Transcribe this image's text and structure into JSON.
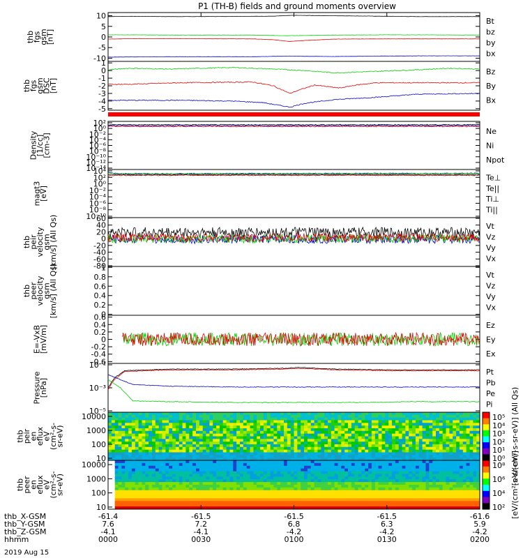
{
  "title": "P1 (TH-B) fields and ground moments overview",
  "date_label": "2019 Aug 15",
  "colors": {
    "black": "#000000",
    "red": "#e00000",
    "green": "#00d000",
    "blue": "#0000c8"
  },
  "chart_data": [
    {
      "id": "fgs_gsm",
      "type": "line",
      "ylabel": [
        "thb",
        "fgs",
        "gsm",
        "[nT]"
      ],
      "yticks": [
        10,
        5,
        0,
        -5,
        -10
      ],
      "ylim": [
        -11.5,
        11.5
      ],
      "legend": [
        {
          "name": "Bt",
          "color": "#000000"
        },
        {
          "name": "bz",
          "color": "#e00000"
        },
        {
          "name": "by",
          "color": "#00d000"
        },
        {
          "name": "bx",
          "color": "#0000c8"
        }
      ],
      "series": [
        {
          "name": "Bt",
          "color": "#000000",
          "x": [
            0,
            5,
            15,
            35,
            65,
            80,
            90,
            110,
            130,
            150,
            180
          ],
          "y": [
            9.6,
            9.7,
            9.7,
            9.6,
            9.7,
            9.8,
            10.2,
            10.0,
            9.8,
            9.6,
            9.6
          ]
        },
        {
          "name": "bz",
          "color": "#e00000",
          "x": [
            0,
            10,
            35,
            70,
            80,
            88,
            92,
            110,
            130,
            150,
            180
          ],
          "y": [
            -1.0,
            -0.8,
            -0.8,
            -0.9,
            -1.3,
            -2.1,
            -1.8,
            -1.0,
            -0.9,
            -0.9,
            -0.9
          ]
        },
        {
          "name": "by",
          "color": "#00d000",
          "x": [
            0,
            10,
            35,
            70,
            85,
            95,
            110,
            130,
            150,
            180
          ],
          "y": [
            1.0,
            1.0,
            0.9,
            0.9,
            0.6,
            0.7,
            0.9,
            1.0,
            1.0,
            0.9
          ]
        },
        {
          "name": "bx",
          "color": "#0000c8",
          "x": [
            0,
            10,
            35,
            70,
            88,
            95,
            110,
            130,
            150,
            180
          ],
          "y": [
            -9.5,
            -9.4,
            -9.3,
            -9.3,
            -9.0,
            -9.1,
            -9.2,
            -9.0,
            -8.9,
            -8.9
          ]
        }
      ]
    },
    {
      "id": "fgs_dsl",
      "type": "line",
      "ylabel": [
        "thb",
        "fgs",
        "gsm",
        "DSC",
        "[nT]"
      ],
      "yticks": [
        1,
        0,
        -1,
        -2,
        -3,
        -4,
        -5
      ],
      "ylim": [
        -5.2,
        1.2
      ],
      "legend": [
        {
          "name": "Bz",
          "color": "#e00000"
        },
        {
          "name": "By",
          "color": "#00d000"
        },
        {
          "name": "Bx",
          "color": "#0000c8"
        }
      ],
      "series": [
        {
          "name": "By",
          "color": "#00d000",
          "x": [
            0,
            10,
            30,
            60,
            80,
            95,
            110,
            130,
            150,
            165,
            180
          ],
          "y": [
            0.1,
            0.3,
            0.2,
            0.4,
            0.2,
            0.0,
            -0.3,
            -0.1,
            0.1,
            0.3,
            0.2
          ]
        },
        {
          "name": "Bz",
          "color": "#e00000",
          "x": [
            0,
            10,
            35,
            70,
            80,
            88,
            92,
            100,
            112,
            120,
            130,
            150,
            180
          ],
          "y": [
            -1.8,
            -1.8,
            -1.6,
            -1.5,
            -2.0,
            -3.0,
            -2.6,
            -1.9,
            -2.3,
            -1.9,
            -1.6,
            -1.6,
            -1.6
          ]
        },
        {
          "name": "Bx",
          "color": "#0000c8",
          "x": [
            0,
            10,
            35,
            60,
            75,
            88,
            95,
            110,
            130,
            150,
            180
          ],
          "y": [
            -3.9,
            -3.9,
            -3.9,
            -4.0,
            -4.2,
            -4.8,
            -4.3,
            -3.8,
            -3.5,
            -3.1,
            -3.0
          ]
        }
      ]
    },
    {
      "id": "flag_bar",
      "type": "bar",
      "values": [
        1
      ],
      "color": "#ff0000"
    },
    {
      "id": "density",
      "type": "line",
      "ylabel": [
        "Density",
        "[1/cc]",
        "[cm-3]"
      ],
      "yticks": [
        "10²",
        "10⁰",
        "10⁻²",
        "10⁻⁴",
        "10⁻⁶",
        "10⁻⁸",
        "10⁻¹⁰",
        "10⁻¹²",
        "10⁻¹⁴"
      ],
      "yscale": "log",
      "ylim": [
        -14,
        3
      ],
      "legend": [
        {
          "name": "Ne",
          "color": "#e00000"
        },
        {
          "name": "Ni",
          "color": "#000000"
        },
        {
          "name": "Npot",
          "color": "#0000c8"
        }
      ],
      "series": [
        {
          "name": "Ni",
          "color": "#000000",
          "x": [
            0,
            180
          ],
          "y": [
            1.8,
            1.8
          ]
        },
        {
          "name": "Ne",
          "color": "#e00000",
          "x": [
            0,
            180
          ],
          "y": [
            1.2,
            1.2
          ]
        },
        {
          "name": "Npot",
          "color": "#0000c8",
          "x": [
            0,
            180
          ],
          "y": [
            1.5,
            1.5
          ]
        }
      ]
    },
    {
      "id": "temp",
      "type": "line",
      "ylabel": [
        "magt3",
        "[eV]"
      ],
      "yticks": [
        "10⁴",
        "10²",
        "10⁰",
        "10⁻²",
        "10⁻⁴",
        "10⁻⁶",
        "10⁻⁸",
        "10⁻¹⁰"
      ],
      "yscale": "log",
      "ylim": [
        -10,
        4
      ],
      "legend": [
        {
          "name": "Te⊥",
          "color": "#e00000"
        },
        {
          "name": "Te||",
          "color": "#000000"
        },
        {
          "name": "Ti⊥",
          "color": "#0000c8"
        },
        {
          "name": "Ti||",
          "color": "#00d000"
        }
      ],
      "series": [
        {
          "name": "Ti⊥",
          "color": "#0000c8",
          "x": [
            0,
            5,
            180
          ],
          "y": [
            3.2,
            2.8,
            2.9
          ]
        },
        {
          "name": "Ti||",
          "color": "#00d000",
          "x": [
            0,
            5,
            180
          ],
          "y": [
            3.0,
            2.7,
            2.8
          ]
        },
        {
          "name": "Te⊥",
          "color": "#e00000",
          "x": [
            0,
            5,
            180
          ],
          "y": [
            2.2,
            2.3,
            2.3
          ]
        },
        {
          "name": "Te||",
          "color": "#000000",
          "x": [
            0,
            5,
            180
          ],
          "y": [
            2.5,
            2.5,
            2.5
          ]
        }
      ]
    },
    {
      "id": "peir_vel",
      "type": "line",
      "ylabel": [
        "thb",
        "peir",
        "velocity",
        "gsm",
        "[km/s] (All Qs)"
      ],
      "yticks": [
        60,
        40,
        20,
        0,
        -20,
        -40,
        -60,
        -80
      ],
      "ylim": [
        -82,
        62
      ],
      "legend": [
        {
          "name": "Vt",
          "color": "#000000"
        },
        {
          "name": "Vz",
          "color": "#e00000"
        },
        {
          "name": "Vy",
          "color": "#00d000"
        },
        {
          "name": "Vx",
          "color": "#0000c8"
        }
      ],
      "series": [
        {
          "name": "Vt",
          "color": "#000000",
          "x": [
            0,
            180
          ],
          "y": [
            18,
            18
          ]
        },
        {
          "name": "Vx",
          "color": "#0000c8",
          "x": [
            0,
            180
          ],
          "y": [
            -2,
            -2
          ]
        },
        {
          "name": "Vy",
          "color": "#00d000",
          "x": [
            0,
            180
          ],
          "y": [
            0,
            0
          ]
        },
        {
          "name": "Vz",
          "color": "#e00000",
          "x": [
            0,
            180
          ],
          "y": [
            3,
            3
          ]
        }
      ]
    },
    {
      "id": "peer_vel",
      "type": "line",
      "ylabel": [
        "thb",
        "peer",
        "velocity",
        "gsm",
        "[km/s] (All Qs)"
      ],
      "yticks": [
        1.0,
        0.8,
        0.6,
        0.4,
        0.2,
        0.0
      ],
      "ylim": [
        -0.02,
        1.02
      ],
      "legend": [
        {
          "name": "Vt",
          "color": "#000000"
        },
        {
          "name": "Vz",
          "color": "#e00000"
        },
        {
          "name": "Vy",
          "color": "#00d000"
        },
        {
          "name": "Vx",
          "color": "#0000c8"
        }
      ],
      "series": []
    },
    {
      "id": "efield",
      "type": "line",
      "ylabel": [
        "E=-VxB",
        "[mV/m]"
      ],
      "yticks": [
        0.6,
        0.4,
        0.2,
        0.0,
        -0.2,
        -0.4,
        -0.6
      ],
      "ylim": [
        -0.65,
        0.65
      ],
      "legend": [
        {
          "name": "Ez",
          "color": "#e00000"
        },
        {
          "name": "Ey",
          "color": "#00d000"
        },
        {
          "name": "Ex",
          "color": "#0000c8"
        }
      ],
      "series": [
        {
          "name": "Ey",
          "color": "#00d000",
          "x": [
            7,
            180
          ],
          "y": [
            0.0,
            0.0
          ]
        },
        {
          "name": "Ez",
          "color": "#e00000",
          "x": [
            7,
            180
          ],
          "y": [
            0.0,
            0.0
          ]
        }
      ]
    },
    {
      "id": "pressure",
      "type": "line",
      "ylabel": [
        "Pressure",
        "[nPa]"
      ],
      "yticks": [
        "10⁻¹",
        "10⁻³",
        "10⁻⁵"
      ],
      "yscale": "log",
      "ylim": [
        -6,
        0
      ],
      "legend": [
        {
          "name": "Pt",
          "color": "#000000"
        },
        {
          "name": "Pb",
          "color": "#e00000"
        },
        {
          "name": "Pe",
          "color": "#00d000"
        },
        {
          "name": "Pi",
          "color": "#0000c8"
        }
      ],
      "series": [
        {
          "name": "Pt",
          "color": "#000000",
          "x": [
            0,
            3,
            8,
            30,
            60,
            85,
            92,
            110,
            140,
            180
          ],
          "y": [
            -3.0,
            -1.8,
            -0.9,
            -0.7,
            -0.7,
            -0.6,
            -0.5,
            -0.7,
            -0.8,
            -0.8
          ]
        },
        {
          "name": "Pb",
          "color": "#e00000",
          "x": [
            0,
            3,
            8,
            30,
            60,
            85,
            92,
            110,
            140,
            180
          ],
          "y": [
            -3.2,
            -2.0,
            -1.0,
            -0.8,
            -0.8,
            -0.7,
            -0.6,
            -0.8,
            -0.9,
            -0.9
          ]
        },
        {
          "name": "Pe",
          "color": "#00d000",
          "x": [
            0,
            6,
            12,
            30,
            60,
            90,
            120,
            150,
            180
          ],
          "y": [
            -2.0,
            -3.0,
            -4.6,
            -4.7,
            -4.8,
            -4.8,
            -4.8,
            -4.7,
            -4.7
          ]
        },
        {
          "name": "Pi",
          "color": "#0000c8",
          "x": [
            0,
            6,
            12,
            30,
            60,
            90,
            120,
            150,
            180
          ],
          "y": [
            -1.4,
            -2.0,
            -2.6,
            -2.8,
            -2.9,
            -2.9,
            -2.9,
            -2.9,
            -2.9
          ]
        }
      ]
    },
    {
      "id": "peir_spec",
      "type": "heatmap",
      "ylabel": [
        "thb",
        "peir",
        "en",
        "eflux",
        "eV",
        "(cm²-s-",
        "sr-eV)"
      ],
      "yticks": [
        10000,
        1000,
        100,
        10
      ],
      "yscale": "log",
      "colorbar_ticks": [
        "10⁵",
        "10⁴",
        "10³",
        "10²",
        "10¹",
        "10⁰"
      ],
      "colorbar_label": "[eV/(cm²-s-sr-eV)] (All Qs)"
    },
    {
      "id": "peer_spec",
      "type": "heatmap",
      "ylabel": [
        "thb",
        "peer",
        "en",
        "eflux",
        "eV",
        "(cm²-s-",
        "sr-eV)"
      ],
      "yticks": [
        10000,
        1000,
        100,
        10
      ],
      "yscale": "log",
      "colorbar_ticks": [
        "10⁸",
        "10⁶",
        "10⁴",
        "10²"
      ],
      "colorbar_label": "[eV/(cm²-s-sr-eV)]"
    }
  ],
  "xaxis": {
    "rows": [
      {
        "label": "thb_X-GSM",
        "values": [
          "-61.4",
          "-61.5",
          "-61.5",
          "-61.5",
          "-61.6"
        ]
      },
      {
        "label": "thb_Y-GSM",
        "values": [
          "7.6",
          "7.2",
          "6.8",
          "6.3",
          "5.9"
        ]
      },
      {
        "label": "thb_Z-GSM",
        "values": [
          "-4.1",
          "-4.1",
          "-4.2",
          "-4.2",
          "-4.2"
        ]
      },
      {
        "label": "hhmm",
        "values": [
          "0000",
          "0030",
          "0100",
          "0130",
          "0200"
        ]
      }
    ]
  }
}
